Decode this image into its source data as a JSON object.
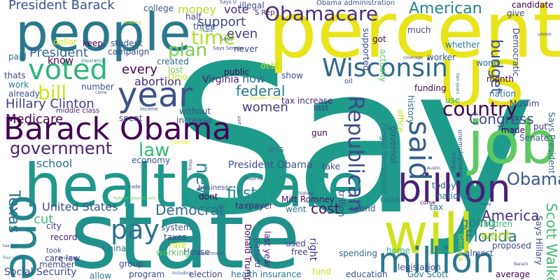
{
  "words": [
    {
      "text": "Say",
      "color": "#1e9b8a"
    },
    {
      "text": "percent",
      "color": "#e8e419"
    },
    {
      "text": "state",
      "color": "#21918c"
    },
    {
      "text": "health care",
      "color": "#1f988b"
    },
    {
      "text": "people",
      "color": "#2a788e"
    },
    {
      "text": "job",
      "color": "#5ec962"
    },
    {
      "text": "Barack Obama",
      "color": "#440154"
    },
    {
      "text": "will",
      "color": "#d0e11c"
    },
    {
      "text": "US",
      "color": "#e8e419"
    },
    {
      "text": "billion",
      "color": "#482173"
    },
    {
      "text": "million",
      "color": "#2a788e"
    },
    {
      "text": "Wisconsin",
      "color": "#31688e"
    },
    {
      "text": "year",
      "color": "#3b528b"
    },
    {
      "text": "one",
      "color": "#25848e"
    },
    {
      "text": "said",
      "color": "#355f8d"
    },
    {
      "text": "voted",
      "color": "#2fb47c"
    },
    {
      "text": "Obamacare",
      "color": "#472d7b"
    },
    {
      "text": "government",
      "color": "#482475"
    },
    {
      "text": "pay",
      "color": "#2c728e"
    },
    {
      "text": "American",
      "color": "#26828e"
    },
    {
      "text": "Republican",
      "color": "#3e4a89"
    },
    {
      "text": "country",
      "color": "#440154"
    },
    {
      "text": "Obama",
      "color": "#38598c"
    },
    {
      "text": "bill",
      "color": "#d8e219"
    },
    {
      "text": "time",
      "color": "#b5de2b"
    },
    {
      "text": "plan",
      "color": "#7ad151"
    },
    {
      "text": "Texas",
      "color": "#2d708e"
    },
    {
      "text": "Scott Walker",
      "color": "#3fbc73"
    },
    {
      "text": "Hillary Clinton",
      "color": "#433e85"
    },
    {
      "text": "President Barack",
      "color": "#3b528b"
    },
    {
      "text": "law",
      "color": "#35b779"
    },
    {
      "text": "new",
      "color": "#23898e"
    },
    {
      "text": "Democrat",
      "color": "#31688e"
    },
    {
      "text": "Florida",
      "color": "#2c728e"
    },
    {
      "text": "America",
      "color": "#472d7b"
    },
    {
      "text": "Congress",
      "color": "#3e4a89"
    },
    {
      "text": "budget",
      "color": "#3b528b"
    },
    {
      "text": "first",
      "color": "#25848e"
    },
    {
      "text": "President",
      "color": "#31688e"
    },
    {
      "text": "federal",
      "color": "#2a788e"
    },
    {
      "text": "support",
      "color": "#3e4a89"
    },
    {
      "text": "vote",
      "color": "#472d7b"
    },
    {
      "text": "women",
      "color": "#433e85"
    },
    {
      "text": "Medicare",
      "color": "#440154"
    },
    {
      "text": "United States",
      "color": "#3b528b"
    },
    {
      "text": "cost",
      "color": "#471365"
    },
    {
      "text": "cut",
      "color": "#3fbc73"
    },
    {
      "text": "going",
      "color": "#2a788e"
    },
    {
      "text": "every",
      "color": "#440154"
    },
    {
      "text": "even",
      "color": "#433e85"
    },
    {
      "text": "now",
      "color": "#2c728e"
    },
    {
      "text": "money",
      "color": "#b8de29"
    },
    {
      "text": "want",
      "color": "#c2df23"
    },
    {
      "text": "school",
      "color": "#2c728e"
    },
    {
      "text": "President Obama",
      "color": "#3b528b"
    },
    {
      "text": "Social Security",
      "color": "#3e4a89"
    },
    {
      "text": "abortion",
      "color": "#472d7b"
    },
    {
      "text": "Virginia",
      "color": "#482475"
    },
    {
      "text": "taxpayer",
      "color": "#482173"
    },
    {
      "text": "Mitt Romney",
      "color": "#471365"
    },
    {
      "text": "world",
      "color": "#2c728e"
    },
    {
      "text": "month",
      "color": "#440154"
    },
    {
      "text": "spending",
      "color": "#31688e"
    },
    {
      "text": "proposed",
      "color": "#3e4a89"
    },
    {
      "text": "children",
      "color": "#3fbc73"
    },
    {
      "text": "system",
      "color": "#3b528b"
    },
    {
      "text": "taxes",
      "color": "#433e85"
    },
    {
      "text": "rate",
      "color": "#d8e219"
    },
    {
      "text": "House",
      "color": "#3b528b"
    },
    {
      "text": "program",
      "color": "#3e4a89"
    },
    {
      "text": "Gov Scott",
      "color": "#2a788e"
    },
    {
      "text": "education",
      "color": "#3b528b"
    },
    {
      "text": "health insurance",
      "color": "#2c728e"
    },
    {
      "text": "fund",
      "color": "#d0e11c"
    },
    {
      "text": "election",
      "color": "#433e85"
    },
    {
      "text": "average",
      "color": "#440154"
    },
    {
      "text": "tax increase",
      "color": "#482475"
    },
    {
      "text": "public",
      "color": "#440154"
    },
    {
      "text": "created",
      "color": "#31688e"
    },
    {
      "text": "increase",
      "color": "#3e4a89"
    },
    {
      "text": "without",
      "color": "#3b528b"
    },
    {
      "text": "economy",
      "color": "#3b528b"
    },
    {
      "text": "care law",
      "color": "#433e85"
    },
    {
      "text": "China",
      "color": "#2a788e"
    },
    {
      "text": "group",
      "color": "#3e4a89"
    },
    {
      "text": "city",
      "color": "#433e85"
    },
    {
      "text": "record",
      "color": "#482475"
    },
    {
      "text": "member",
      "color": "#3e4a89"
    },
    {
      "text": "working",
      "color": "#5ec962"
    },
    {
      "text": "allow",
      "color": "#2c728e"
    },
    {
      "text": "national",
      "color": "#2a788e"
    },
    {
      "text": "today",
      "color": "#3b528b"
    },
    {
      "text": "raise",
      "color": "#2c728e"
    },
    {
      "text": "funding",
      "color": "#440154"
    },
    {
      "text": "history",
      "color": "#31688e"
    },
    {
      "text": "Democratic",
      "color": "#3e4a89"
    },
    {
      "text": "nation",
      "color": "#2a788e"
    },
    {
      "text": "use",
      "color": "#2fb47c"
    },
    {
      "text": "made",
      "color": "#440154"
    },
    {
      "text": "put",
      "color": "#482475"
    },
    {
      "text": "Senate",
      "color": "#3b528b"
    },
    {
      "text": "give",
      "color": "#3e4a89"
    },
    {
      "text": "candidate",
      "color": "#440154"
    },
    {
      "text": "illegal",
      "color": "#3e4a89"
    },
    {
      "text": "Obama administration",
      "color": "#3b528b"
    },
    {
      "text": "got",
      "color": "#440154"
    },
    {
      "text": "much",
      "color": "#3e4a89"
    },
    {
      "text": "whether",
      "color": "#2a788e"
    },
    {
      "text": "worker",
      "color": "#3b528b"
    },
    {
      "text": "Muslim",
      "color": "#433e85"
    },
    {
      "text": "college",
      "color": "#3b528b"
    },
    {
      "text": "half",
      "color": "#3e4a89"
    },
    {
      "text": "three",
      "color": "#3b528b"
    },
    {
      "text": "keep",
      "color": "#440154"
    },
    {
      "text": "student",
      "color": "#3b528b"
    },
    {
      "text": "campaign",
      "color": "#3e4a89"
    },
    {
      "text": "dollar",
      "color": "#d8e219"
    },
    {
      "text": "paid",
      "color": "#2c728e"
    },
    {
      "text": "know",
      "color": "#440154"
    },
    {
      "text": "work",
      "color": "#2a788e"
    },
    {
      "text": "thats",
      "color": "#3e4a89"
    },
    {
      "text": "already",
      "color": "#3b528b"
    },
    {
      "text": "number",
      "color": "#3b528b"
    },
    {
      "text": "lost",
      "color": "#7ad151"
    },
    {
      "text": "Ohio",
      "color": "#c2df23"
    },
    {
      "text": "debt",
      "color": "#b5de2b"
    },
    {
      "text": "never",
      "color": "#3e4a89"
    },
    {
      "text": "show",
      "color": "#3b528b"
    },
    {
      "text": "last",
      "color": "#433e85"
    },
    {
      "text": "gun",
      "color": "#440154"
    },
    {
      "text": "spent",
      "color": "#3e4a89"
    },
    {
      "text": "less",
      "color": "#2c728e"
    },
    {
      "text": "dont",
      "color": "#440154"
    },
    {
      "text": "business",
      "color": "#3b528b"
    },
    {
      "text": "take",
      "color": "#3e4a89"
    },
    {
      "text": "went",
      "color": "#2c728e"
    },
    {
      "text": "spend",
      "color": "#3e4a89"
    },
    {
      "text": "tax",
      "color": "#2a788e"
    },
    {
      "text": "free",
      "color": "#433e85"
    },
    {
      "text": "used",
      "color": "#3e4a89"
    },
    {
      "text": "home",
      "color": "#2fb47c"
    },
    {
      "text": "almost",
      "color": "#3b528b"
    },
    {
      "text": "legislation",
      "color": "#3e4a89"
    },
    {
      "text": "took",
      "color": "#3e4a89"
    },
    {
      "text": "middle class",
      "color": "#482475"
    },
    {
      "text": "Donald Trump",
      "color": "#440154"
    },
    {
      "text": "right",
      "color": "#472d7b"
    },
    {
      "text": "passed",
      "color": "#3b528b"
    },
    {
      "text": "last year",
      "color": "#482173"
    },
    {
      "text": "trillion",
      "color": "#3e4a89"
    },
    {
      "text": "governor",
      "color": "#3b528b"
    },
    {
      "text": "office",
      "color": "#c2df23"
    },
    {
      "text": "illegal immigrant",
      "color": "#2c728e"
    },
    {
      "text": "supported",
      "color": "#3e4a89"
    },
    {
      "text": "actually",
      "color": "#5ec962"
    },
    {
      "text": "Says Hillary",
      "color": "#3e4a89"
    },
    {
      "text": "Says President",
      "color": "#31688e"
    },
    {
      "text": "Georgia",
      "color": "#b8de29"
    },
    {
      "text": "energy",
      "color": "#3b528b"
    },
    {
      "text": "unemployment",
      "color": "#3b528b"
    },
    {
      "text": "oil",
      "color": "#3e4a89"
    },
    {
      "text": "S Rep",
      "color": "#482475"
    },
    {
      "text": "Says U",
      "color": "#3b528b"
    },
    {
      "text": "Says",
      "color": "#2c728e"
    },
    {
      "text": "insurance",
      "color": "#2c728e"
    },
    {
      "text": "making",
      "color": "#b5de2b"
    },
    {
      "text": "come",
      "color": "#440154"
    },
    {
      "text": "income",
      "color": "#3b528b"
    },
    {
      "text": "Says Senate",
      "color": "#3e4a89"
    },
    {
      "text": "two years",
      "color": "#2c728e"
    },
    {
      "text": "back",
      "color": "#3b528b"
    },
    {
      "text": "union",
      "color": "#3b528b"
    },
    {
      "text": "coverage",
      "color": "#3e4a89"
    },
    {
      "text": "Clinton",
      "color": "#e8e419"
    },
    {
      "text": "majority",
      "color": "#3b528b"
    },
    {
      "text": "private",
      "color": "#3e4a89"
    },
    {
      "text": "trade",
      "color": "#3e4a89"
    },
    {
      "text": "four year",
      "color": "#2c728e"
    },
    {
      "text": "tax cut",
      "color": "#3e4a89"
    },
    {
      "text": "Austin",
      "color": "#3e4a89"
    },
    {
      "text": "highest",
      "color": "#3e4a89"
    },
    {
      "text": "including",
      "color": "#3b528b"
    },
    {
      "text": "Department",
      "color": "#3e4a89"
    },
    {
      "text": "Supreme Court",
      "color": "#d8e219"
    },
    {
      "text": "federal government",
      "color": "#5ec962"
    },
    {
      "text": "away",
      "color": "#3b528b"
    },
    {
      "text": "Barack",
      "color": "#3e4a89"
    },
    {
      "text": "came",
      "color": "#3b528b"
    },
    {
      "text": "part",
      "color": "#3e4a89"
    },
    {
      "text": "thing",
      "color": "#3b528b"
    }
  ]
}
